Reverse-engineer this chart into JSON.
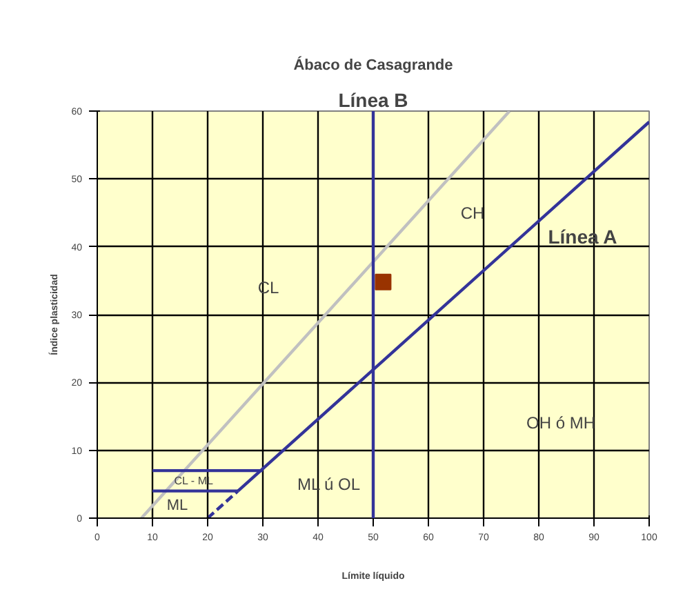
{
  "chart_data": {
    "type": "line",
    "title": "Ábaco de Casagrande",
    "xlabel": "Límite líquido",
    "ylabel": "Índice plasticidad",
    "xlim": [
      0,
      100
    ],
    "ylim": [
      0,
      60
    ],
    "xticks": [
      0,
      10,
      20,
      30,
      40,
      50,
      60,
      70,
      80,
      90,
      100
    ],
    "yticks": [
      0,
      10,
      20,
      30,
      40,
      50,
      60
    ],
    "grid": true,
    "series": [
      {
        "x": [
          25.5,
          100
        ],
        "values": [
          4,
          58.4
        ],
        "color": "#333399",
        "line_style": "solid",
        "marker": "none"
      },
      {
        "x": [
          20,
          25.5
        ],
        "values": [
          0,
          4
        ],
        "color": "#333399",
        "line_style": "dashed",
        "marker": "none"
      },
      {
        "x": [
          8,
          74.7
        ],
        "values": [
          0,
          60
        ],
        "color": "#c0c0c0",
        "line_style": "solid",
        "marker": "none"
      },
      {
        "x": [
          10,
          30
        ],
        "values": [
          7,
          7
        ],
        "color": "#333399",
        "line_style": "solid",
        "marker": "none"
      },
      {
        "x": [
          10,
          25.5
        ],
        "values": [
          4,
          4
        ],
        "color": "#333399",
        "line_style": "solid",
        "marker": "none"
      },
      {
        "type": "scatter",
        "x": [
          51.8
        ],
        "values": [
          34.8
        ],
        "color": "#993300",
        "marker": "square"
      }
    ],
    "ref_lines": [
      {
        "axis": "x",
        "value": 50,
        "label": "Línea B",
        "color": "#333399"
      }
    ],
    "annotations": [
      "Línea A",
      "CL",
      "CH",
      "OH ó MH",
      "ML ú OL",
      "CL - ML",
      "ML"
    ]
  }
}
